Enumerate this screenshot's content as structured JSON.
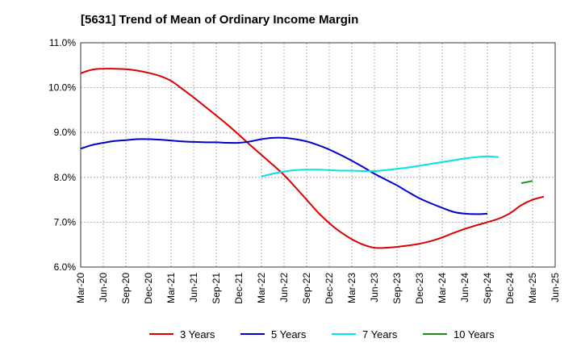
{
  "chart_data": {
    "type": "line",
    "title": "[5631]  Trend of Mean of Ordinary Income Margin",
    "xlabel": "",
    "ylabel": "",
    "ylim": [
      6.0,
      11.0
    ],
    "y_ticks": [
      "6.0%",
      "7.0%",
      "8.0%",
      "9.0%",
      "10.0%",
      "11.0%"
    ],
    "x_ticks": [
      "Mar-20",
      "Jun-20",
      "Sep-20",
      "Dec-20",
      "Mar-21",
      "Jun-21",
      "Sep-21",
      "Dec-21",
      "Mar-22",
      "Jun-22",
      "Sep-22",
      "Dec-22",
      "Mar-23",
      "Jun-23",
      "Sep-23",
      "Dec-23",
      "Mar-24",
      "Jun-24",
      "Sep-24",
      "Dec-24",
      "Mar-25",
      "Jun-25"
    ],
    "grid": true,
    "legend_position": "bottom",
    "series": [
      {
        "name": "3 Years",
        "color": "#dd0000",
        "start_index": 0,
        "values": [
          10.32,
          10.4,
          10.42,
          10.42,
          10.41,
          10.38,
          10.33,
          10.26,
          10.15,
          9.97,
          9.78,
          9.58,
          9.38,
          9.17,
          8.95,
          8.72,
          8.5,
          8.28,
          8.05,
          7.78,
          7.5,
          7.22,
          6.98,
          6.78,
          6.62,
          6.5,
          6.43,
          6.43,
          6.45,
          6.48,
          6.52,
          6.58,
          6.66,
          6.76,
          6.85,
          6.93,
          7.0,
          7.08,
          7.2,
          7.38,
          7.5,
          7.57
        ]
      },
      {
        "name": "5 Years",
        "color": "#0000cc",
        "start_index": 0,
        "values": [
          8.64,
          8.72,
          8.77,
          8.81,
          8.83,
          8.85,
          8.85,
          8.84,
          8.82,
          8.8,
          8.79,
          8.78,
          8.78,
          8.77,
          8.77,
          8.8,
          8.85,
          8.88,
          8.88,
          8.85,
          8.8,
          8.72,
          8.62,
          8.5,
          8.37,
          8.23,
          8.08,
          7.95,
          7.82,
          7.67,
          7.53,
          7.42,
          7.32,
          7.23,
          7.19,
          7.18,
          7.19
        ]
      },
      {
        "name": "7 Years",
        "color": "#00e5e5",
        "start_index": 16,
        "values": [
          8.02,
          8.08,
          8.13,
          8.16,
          8.17,
          8.17,
          8.16,
          8.15,
          8.15,
          8.14,
          8.14,
          8.16,
          8.19,
          8.22,
          8.26,
          8.3,
          8.34,
          8.38,
          8.42,
          8.45,
          8.47,
          8.45
        ]
      },
      {
        "name": "10 Years",
        "color": "#228b22",
        "start_index": 39,
        "values": [
          7.87,
          7.92
        ]
      }
    ]
  }
}
